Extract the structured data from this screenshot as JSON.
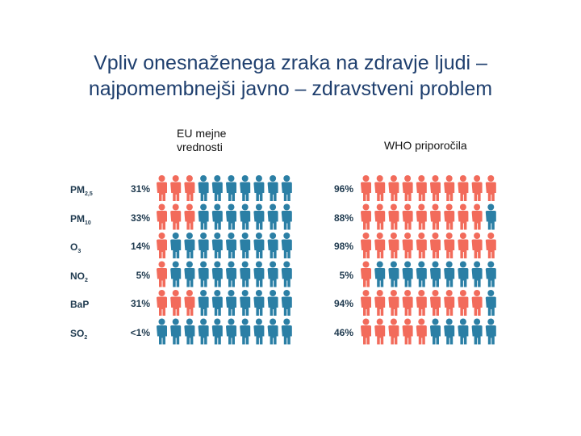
{
  "title": {
    "line1": "Vpliv onesnaženega zraka na zdravje ljudi –",
    "line2": "najpomembnejši javno – zdravstveni problem"
  },
  "columns": {
    "eu": {
      "line1": "EU mejne",
      "line2": "vrednosti"
    },
    "who": "WHO priporočila"
  },
  "colors": {
    "exceeded": "#f26b5b",
    "ok": "#2b7fa5"
  },
  "icon": "person-icon",
  "icons_per_row": 10,
  "rows": [
    {
      "pollutant": "PM",
      "sub": "2,5",
      "eu_pct": "31%",
      "eu_share": 0.31,
      "who_pct": "96%",
      "who_share": 0.96
    },
    {
      "pollutant": "PM",
      "sub": "10",
      "eu_pct": "33%",
      "eu_share": 0.33,
      "who_pct": "88%",
      "who_share": 0.88
    },
    {
      "pollutant": "O",
      "sub": "3",
      "eu_pct": "14%",
      "eu_share": 0.14,
      "who_pct": "98%",
      "who_share": 0.98
    },
    {
      "pollutant": "NO",
      "sub": "2",
      "eu_pct": "5%",
      "eu_share": 0.05,
      "who_pct": "5%",
      "who_share": 0.05
    },
    {
      "pollutant": "BaP",
      "sub": "",
      "eu_pct": "31%",
      "eu_share": 0.31,
      "who_pct": "94%",
      "who_share": 0.94
    },
    {
      "pollutant": "SO",
      "sub": "2",
      "eu_pct": "<1%",
      "eu_share": 0.0,
      "who_pct": "46%",
      "who_share": 0.46
    }
  ]
}
